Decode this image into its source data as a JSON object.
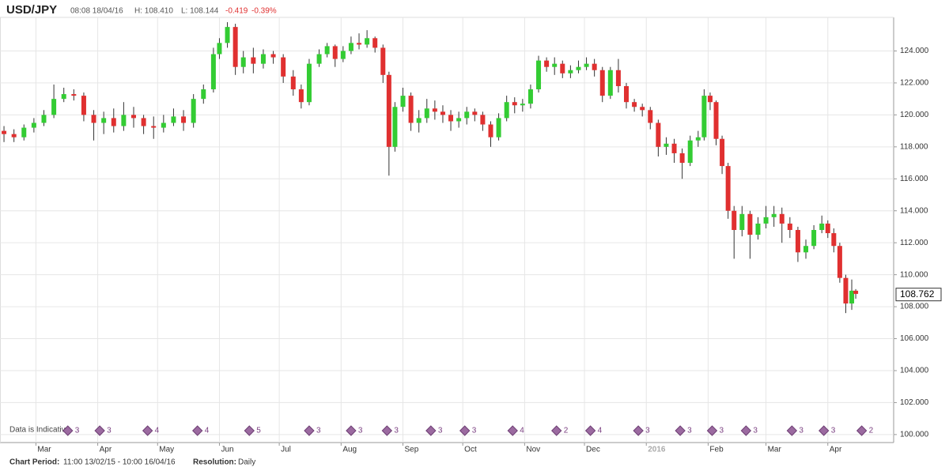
{
  "chart_data": {
    "type": "candlestick",
    "title": "USD/JPY",
    "time": "08:08 18/04/16",
    "high": "H: 108.410",
    "low": "L: 108.144",
    "change": "-0.419",
    "change_pct": "-0.39%",
    "note": "Data is Indicative",
    "period_label": "Chart Period:",
    "period": "11:00 13/02/15 - 10:00 16/04/16",
    "resolution_label": "Resolution:",
    "resolution": "Daily",
    "last_price": 108.762,
    "up_color": "#33cc33",
    "down_color": "#e03030",
    "grid": true,
    "xlim": [
      -2,
      446
    ],
    "ylim": [
      99.5,
      126.1
    ],
    "xticks": [
      {
        "value": 16,
        "label": "Mar"
      },
      {
        "value": 47,
        "label": "Apr"
      },
      {
        "value": 77,
        "label": "May"
      },
      {
        "value": 108,
        "label": "Jun"
      },
      {
        "value": 138,
        "label": "Jul"
      },
      {
        "value": 169,
        "label": "Aug"
      },
      {
        "value": 200,
        "label": "Sep"
      },
      {
        "value": 230,
        "label": "Oct"
      },
      {
        "value": 261,
        "label": "Nov"
      },
      {
        "value": 291,
        "label": "Dec"
      },
      {
        "value": 322,
        "label": "2016"
      },
      {
        "value": 353,
        "label": "Feb"
      },
      {
        "value": 382,
        "label": "Mar"
      },
      {
        "value": 413,
        "label": "Apr"
      }
    ],
    "yticks": [
      {
        "value": 100,
        "label": "100.000"
      },
      {
        "value": 102,
        "label": "102.000"
      },
      {
        "value": 104,
        "label": "104.000"
      },
      {
        "value": 106,
        "label": "106.000"
      },
      {
        "value": 108,
        "label": "108.000"
      },
      {
        "value": 110,
        "label": "110.000"
      },
      {
        "value": 112,
        "label": "112.000"
      },
      {
        "value": 114,
        "label": "114.000"
      },
      {
        "value": 116,
        "label": "116.000"
      },
      {
        "value": 118,
        "label": "118.000"
      },
      {
        "value": 120,
        "label": "120.000"
      },
      {
        "value": 122,
        "label": "122.000"
      },
      {
        "value": 124,
        "label": "124.000"
      }
    ],
    "events": [
      {
        "x": 32,
        "count": 3
      },
      {
        "x": 48,
        "count": 3
      },
      {
        "x": 72,
        "count": 4
      },
      {
        "x": 97,
        "count": 4
      },
      {
        "x": 123,
        "count": 5
      },
      {
        "x": 153,
        "count": 3
      },
      {
        "x": 174,
        "count": 3
      },
      {
        "x": 192,
        "count": 3
      },
      {
        "x": 214,
        "count": 3
      },
      {
        "x": 231,
        "count": 3
      },
      {
        "x": 255,
        "count": 4
      },
      {
        "x": 277,
        "count": 2
      },
      {
        "x": 294,
        "count": 4
      },
      {
        "x": 318,
        "count": 3
      },
      {
        "x": 339,
        "count": 3
      },
      {
        "x": 355,
        "count": 3
      },
      {
        "x": 372,
        "count": 3
      },
      {
        "x": 395,
        "count": 3
      },
      {
        "x": 411,
        "count": 3
      },
      {
        "x": 430,
        "count": 2
      }
    ],
    "candles": [
      {
        "x": 0,
        "open": 119.0,
        "high": 119.3,
        "low": 118.3,
        "close": 118.8
      },
      {
        "x": 5,
        "open": 118.8,
        "high": 119.1,
        "low": 118.3,
        "close": 118.6
      },
      {
        "x": 10,
        "open": 118.6,
        "high": 119.4,
        "low": 118.4,
        "close": 119.2
      },
      {
        "x": 15,
        "open": 119.2,
        "high": 119.8,
        "low": 118.9,
        "close": 119.5
      },
      {
        "x": 20,
        "open": 119.5,
        "high": 120.3,
        "low": 119.3,
        "close": 120.0
      },
      {
        "x": 25,
        "open": 120.0,
        "high": 121.9,
        "low": 119.8,
        "close": 121.0
      },
      {
        "x": 30,
        "open": 121.0,
        "high": 121.7,
        "low": 120.8,
        "close": 121.3
      },
      {
        "x": 35,
        "open": 121.3,
        "high": 121.6,
        "low": 120.9,
        "close": 121.2
      },
      {
        "x": 40,
        "open": 121.2,
        "high": 121.4,
        "low": 119.6,
        "close": 120.0
      },
      {
        "x": 45,
        "open": 120.0,
        "high": 120.3,
        "low": 118.4,
        "close": 119.5
      },
      {
        "x": 50,
        "open": 119.5,
        "high": 120.2,
        "low": 118.8,
        "close": 119.8
      },
      {
        "x": 55,
        "open": 119.8,
        "high": 120.4,
        "low": 118.9,
        "close": 119.3
      },
      {
        "x": 60,
        "open": 119.3,
        "high": 120.8,
        "low": 119.0,
        "close": 120.0
      },
      {
        "x": 65,
        "open": 120.0,
        "high": 120.5,
        "low": 119.2,
        "close": 119.8
      },
      {
        "x": 70,
        "open": 119.8,
        "high": 120.0,
        "low": 118.8,
        "close": 119.3
      },
      {
        "x": 75,
        "open": 119.3,
        "high": 119.9,
        "low": 118.5,
        "close": 119.2
      },
      {
        "x": 80,
        "open": 119.2,
        "high": 120.0,
        "low": 118.9,
        "close": 119.5
      },
      {
        "x": 85,
        "open": 119.5,
        "high": 120.4,
        "low": 119.3,
        "close": 119.9
      },
      {
        "x": 90,
        "open": 119.9,
        "high": 120.3,
        "low": 119.0,
        "close": 119.5
      },
      {
        "x": 95,
        "open": 119.5,
        "high": 121.3,
        "low": 119.2,
        "close": 121.0
      },
      {
        "x": 100,
        "open": 121.0,
        "high": 121.9,
        "low": 120.7,
        "close": 121.6
      },
      {
        "x": 105,
        "open": 121.6,
        "high": 124.2,
        "low": 121.4,
        "close": 123.8
      },
      {
        "x": 108,
        "open": 123.8,
        "high": 124.8,
        "low": 123.5,
        "close": 124.5
      },
      {
        "x": 112,
        "open": 124.5,
        "high": 125.8,
        "low": 124.2,
        "close": 125.5
      },
      {
        "x": 116,
        "open": 125.5,
        "high": 125.7,
        "low": 122.5,
        "close": 123.0
      },
      {
        "x": 120,
        "open": 123.0,
        "high": 124.0,
        "low": 122.6,
        "close": 123.6
      },
      {
        "x": 125,
        "open": 123.6,
        "high": 124.2,
        "low": 122.6,
        "close": 123.2
      },
      {
        "x": 130,
        "open": 123.2,
        "high": 124.1,
        "low": 122.9,
        "close": 123.8
      },
      {
        "x": 135,
        "open": 123.8,
        "high": 124.0,
        "low": 123.2,
        "close": 123.6
      },
      {
        "x": 140,
        "open": 123.6,
        "high": 123.8,
        "low": 122.0,
        "close": 122.4
      },
      {
        "x": 145,
        "open": 122.4,
        "high": 122.8,
        "low": 121.2,
        "close": 121.6
      },
      {
        "x": 149,
        "open": 121.6,
        "high": 121.9,
        "low": 120.4,
        "close": 120.8
      },
      {
        "x": 153,
        "open": 120.8,
        "high": 123.5,
        "low": 120.6,
        "close": 123.2
      },
      {
        "x": 158,
        "open": 123.2,
        "high": 124.1,
        "low": 123.0,
        "close": 123.8
      },
      {
        "x": 162,
        "open": 123.8,
        "high": 124.5,
        "low": 123.6,
        "close": 124.3
      },
      {
        "x": 166,
        "open": 124.3,
        "high": 124.4,
        "low": 123.0,
        "close": 123.5
      },
      {
        "x": 170,
        "open": 123.5,
        "high": 124.3,
        "low": 123.3,
        "close": 124.0
      },
      {
        "x": 174,
        "open": 124.0,
        "high": 124.9,
        "low": 123.8,
        "close": 124.5
      },
      {
        "x": 178,
        "open": 124.5,
        "high": 125.1,
        "low": 124.1,
        "close": 124.4
      },
      {
        "x": 182,
        "open": 124.4,
        "high": 125.3,
        "low": 124.2,
        "close": 124.8
      },
      {
        "x": 186,
        "open": 124.8,
        "high": 124.9,
        "low": 123.9,
        "close": 124.2
      },
      {
        "x": 190,
        "open": 124.2,
        "high": 124.4,
        "low": 122.0,
        "close": 122.5
      },
      {
        "x": 193,
        "open": 122.5,
        "high": 122.7,
        "low": 116.2,
        "close": 118.0
      },
      {
        "x": 196,
        "open": 118.0,
        "high": 120.8,
        "low": 117.7,
        "close": 120.5
      },
      {
        "x": 200,
        "open": 120.5,
        "high": 121.7,
        "low": 120.2,
        "close": 121.2
      },
      {
        "x": 204,
        "open": 121.2,
        "high": 121.4,
        "low": 119.0,
        "close": 119.5
      },
      {
        "x": 208,
        "open": 119.5,
        "high": 120.3,
        "low": 118.9,
        "close": 119.8
      },
      {
        "x": 212,
        "open": 119.8,
        "high": 121.0,
        "low": 119.5,
        "close": 120.4
      },
      {
        "x": 216,
        "open": 120.4,
        "high": 120.9,
        "low": 119.7,
        "close": 120.2
      },
      {
        "x": 220,
        "open": 120.2,
        "high": 120.6,
        "low": 119.5,
        "close": 120.0
      },
      {
        "x": 224,
        "open": 120.0,
        "high": 120.3,
        "low": 119.0,
        "close": 119.6
      },
      {
        "x": 228,
        "open": 119.6,
        "high": 120.2,
        "low": 119.2,
        "close": 119.8
      },
      {
        "x": 232,
        "open": 119.8,
        "high": 120.5,
        "low": 119.4,
        "close": 120.2
      },
      {
        "x": 236,
        "open": 120.2,
        "high": 120.4,
        "low": 119.6,
        "close": 120.0
      },
      {
        "x": 240,
        "open": 120.0,
        "high": 120.2,
        "low": 119.0,
        "close": 119.4
      },
      {
        "x": 244,
        "open": 119.4,
        "high": 119.6,
        "low": 118.0,
        "close": 118.6
      },
      {
        "x": 248,
        "open": 118.6,
        "high": 120.1,
        "low": 118.4,
        "close": 119.8
      },
      {
        "x": 252,
        "open": 119.8,
        "high": 121.2,
        "low": 119.6,
        "close": 120.8
      },
      {
        "x": 256,
        "open": 120.8,
        "high": 121.1,
        "low": 120.1,
        "close": 120.6
      },
      {
        "x": 260,
        "open": 120.6,
        "high": 121.0,
        "low": 120.2,
        "close": 120.7
      },
      {
        "x": 264,
        "open": 120.7,
        "high": 121.9,
        "low": 120.4,
        "close": 121.6
      },
      {
        "x": 268,
        "open": 121.6,
        "high": 123.7,
        "low": 121.4,
        "close": 123.4
      },
      {
        "x": 272,
        "open": 123.4,
        "high": 123.6,
        "low": 122.7,
        "close": 123.0
      },
      {
        "x": 276,
        "open": 123.0,
        "high": 123.6,
        "low": 122.5,
        "close": 123.2
      },
      {
        "x": 280,
        "open": 123.2,
        "high": 123.4,
        "low": 122.3,
        "close": 122.6
      },
      {
        "x": 284,
        "open": 122.6,
        "high": 123.1,
        "low": 122.3,
        "close": 122.8
      },
      {
        "x": 288,
        "open": 122.8,
        "high": 123.4,
        "low": 122.6,
        "close": 123.0
      },
      {
        "x": 292,
        "open": 123.0,
        "high": 123.6,
        "low": 122.8,
        "close": 123.2
      },
      {
        "x": 296,
        "open": 123.2,
        "high": 123.5,
        "low": 122.4,
        "close": 122.8
      },
      {
        "x": 300,
        "open": 122.8,
        "high": 123.0,
        "low": 120.8,
        "close": 121.2
      },
      {
        "x": 304,
        "open": 121.2,
        "high": 123.0,
        "low": 121.0,
        "close": 122.8
      },
      {
        "x": 308,
        "open": 122.8,
        "high": 123.5,
        "low": 121.4,
        "close": 121.8
      },
      {
        "x": 312,
        "open": 121.8,
        "high": 122.0,
        "low": 120.4,
        "close": 120.8
      },
      {
        "x": 316,
        "open": 120.8,
        "high": 121.0,
        "low": 120.2,
        "close": 120.5
      },
      {
        "x": 320,
        "open": 120.5,
        "high": 120.7,
        "low": 119.9,
        "close": 120.3
      },
      {
        "x": 324,
        "open": 120.3,
        "high": 120.5,
        "low": 119.1,
        "close": 119.5
      },
      {
        "x": 328,
        "open": 119.5,
        "high": 119.7,
        "low": 117.4,
        "close": 118.0
      },
      {
        "x": 332,
        "open": 118.0,
        "high": 118.6,
        "low": 117.5,
        "close": 118.2
      },
      {
        "x": 336,
        "open": 118.2,
        "high": 118.5,
        "low": 117.0,
        "close": 117.6
      },
      {
        "x": 340,
        "open": 117.6,
        "high": 117.9,
        "low": 116.0,
        "close": 117.0
      },
      {
        "x": 344,
        "open": 117.0,
        "high": 118.7,
        "low": 116.8,
        "close": 118.4
      },
      {
        "x": 348,
        "open": 118.4,
        "high": 119.0,
        "low": 118.0,
        "close": 118.6
      },
      {
        "x": 351,
        "open": 118.6,
        "high": 121.6,
        "low": 118.4,
        "close": 121.2
      },
      {
        "x": 354,
        "open": 121.2,
        "high": 121.4,
        "low": 120.3,
        "close": 120.8
      },
      {
        "x": 357,
        "open": 120.8,
        "high": 120.9,
        "low": 118.1,
        "close": 118.5
      },
      {
        "x": 360,
        "open": 118.5,
        "high": 118.7,
        "low": 116.3,
        "close": 116.8
      },
      {
        "x": 363,
        "open": 116.8,
        "high": 117.0,
        "low": 113.5,
        "close": 114.0
      },
      {
        "x": 366,
        "open": 114.0,
        "high": 114.3,
        "low": 111.0,
        "close": 112.8
      },
      {
        "x": 370,
        "open": 112.8,
        "high": 114.3,
        "low": 112.4,
        "close": 113.8
      },
      {
        "x": 374,
        "open": 113.8,
        "high": 114.0,
        "low": 111.0,
        "close": 112.5
      },
      {
        "x": 378,
        "open": 112.5,
        "high": 113.6,
        "low": 112.2,
        "close": 113.2
      },
      {
        "x": 382,
        "open": 113.2,
        "high": 114.3,
        "low": 112.9,
        "close": 113.6
      },
      {
        "x": 386,
        "open": 113.6,
        "high": 114.3,
        "low": 113.0,
        "close": 113.8
      },
      {
        "x": 390,
        "open": 113.8,
        "high": 114.2,
        "low": 112.0,
        "close": 113.2
      },
      {
        "x": 394,
        "open": 113.2,
        "high": 113.6,
        "low": 112.3,
        "close": 112.8
      },
      {
        "x": 398,
        "open": 112.8,
        "high": 113.0,
        "low": 110.8,
        "close": 111.4
      },
      {
        "x": 402,
        "open": 111.4,
        "high": 112.2,
        "low": 111.0,
        "close": 111.8
      },
      {
        "x": 406,
        "open": 111.8,
        "high": 113.1,
        "low": 111.6,
        "close": 112.8
      },
      {
        "x": 410,
        "open": 112.8,
        "high": 113.7,
        "low": 112.6,
        "close": 113.2
      },
      {
        "x": 413,
        "open": 113.2,
        "high": 113.4,
        "low": 112.3,
        "close": 112.6
      },
      {
        "x": 416,
        "open": 112.6,
        "high": 112.9,
        "low": 111.4,
        "close": 111.8
      },
      {
        "x": 419,
        "open": 111.8,
        "high": 112.0,
        "low": 109.5,
        "close": 109.8
      },
      {
        "x": 422,
        "open": 109.8,
        "high": 110.0,
        "low": 107.6,
        "close": 108.2
      },
      {
        "x": 425,
        "open": 108.2,
        "high": 109.7,
        "low": 107.8,
        "close": 109.0
      },
      {
        "x": 427,
        "open": 109.0,
        "high": 109.1,
        "low": 108.5,
        "close": 108.8
      }
    ]
  }
}
